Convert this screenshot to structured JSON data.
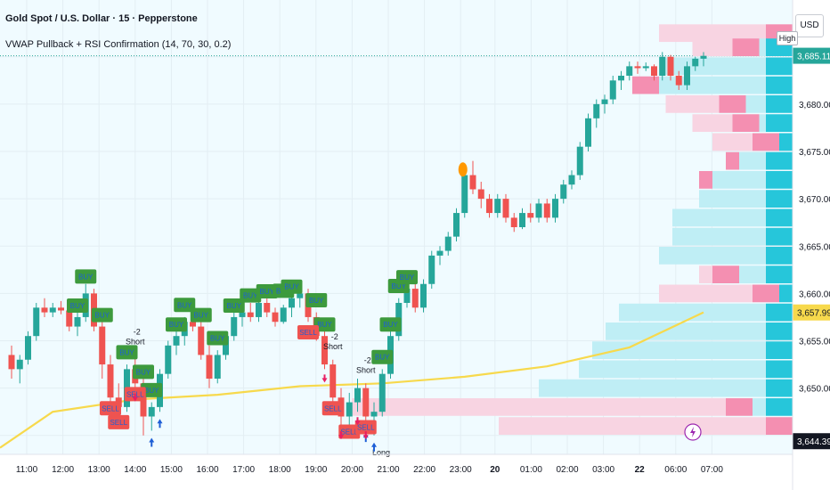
{
  "header": {
    "title": "Gold Spot / U.S. Dollar · 15 · Pepperstone",
    "indicator": "VWAP Pullback + RSI Confirmation (14, 70, 30, 0.2)"
  },
  "currency_button": "USD",
  "high_tag": "High",
  "price_axis": {
    "ticks": [
      "3,680.00",
      "3,675.00",
      "3,670.00",
      "3,665.00",
      "3,660.00",
      "3,655.00",
      "3,650.00"
    ],
    "tick_values": [
      3680,
      3675,
      3670,
      3665,
      3660,
      3655,
      3650
    ]
  },
  "price_labels": {
    "last": {
      "text": "3,685.11",
      "value": 3685.11,
      "color": "#26a69a"
    },
    "vwap": {
      "text": "3,657.99",
      "value": 3657.99,
      "color": "#f7d94c"
    },
    "low": {
      "text": "3,644.39",
      "value": 3644.39,
      "color": "#131722"
    }
  },
  "time_axis": {
    "labels": [
      "11:00",
      "12:00",
      "13:00",
      "14:00",
      "15:00",
      "16:00",
      "17:00",
      "18:00",
      "19:00",
      "20:00",
      "21:00",
      "22:00",
      "23:00",
      "20",
      "01:00",
      "02:00",
      "03:00",
      "22",
      "06:00",
      "07:00"
    ],
    "bold": [
      "20",
      "22"
    ]
  },
  "signal_texts": {
    "buy": "BUY",
    "sell": "SELL",
    "short": "Short",
    "long": "Long",
    "minus2": "-2"
  },
  "colors": {
    "up": "#26a69a",
    "down": "#ef5350",
    "vwap": "#f7d94c",
    "buy_label": "#3d9a3d",
    "sell_label": "#ef5350",
    "vp_blue": "#26c6da",
    "vp_pink": "#f48fb1",
    "dot": "#ff9800",
    "background": "#f0fbff"
  },
  "chart_data": {
    "type": "candlestick",
    "symbol": "XAUUSD",
    "interval": "15",
    "ylim": [
      3643,
      3691
    ],
    "candles": [
      [
        3653.5,
        3654.5,
        3651.0,
        3652.0
      ],
      [
        3652.0,
        3653.5,
        3650.5,
        3653.0
      ],
      [
        3653.0,
        3656.0,
        3652.5,
        3655.5
      ],
      [
        3655.5,
        3659.0,
        3655.0,
        3658.5
      ],
      [
        3658.5,
        3659.5,
        3657.5,
        3658.0
      ],
      [
        3658.0,
        3659.0,
        3657.5,
        3658.5
      ],
      [
        3658.5,
        3659.2,
        3657.8,
        3658.2
      ],
      [
        3658.2,
        3658.8,
        3656.0,
        3656.5
      ],
      [
        3656.5,
        3658.0,
        3655.5,
        3657.5
      ],
      [
        3657.5,
        3661.0,
        3657.0,
        3660.0
      ],
      [
        3660.0,
        3660.5,
        3656.0,
        3656.5
      ],
      [
        3656.5,
        3657.0,
        3651.0,
        3652.5
      ],
      [
        3652.5,
        3653.5,
        3648.0,
        3649.0
      ],
      [
        3649.0,
        3650.5,
        3646.5,
        3648.0
      ],
      [
        3648.0,
        3652.5,
        3647.5,
        3652.0
      ],
      [
        3652.0,
        3653.5,
        3650.0,
        3650.5
      ],
      [
        3650.5,
        3651.0,
        3645.0,
        3647.0
      ],
      [
        3647.0,
        3648.5,
        3645.5,
        3648.0
      ],
      [
        3648.0,
        3652.0,
        3647.5,
        3651.5
      ],
      [
        3651.5,
        3655.0,
        3651.0,
        3654.5
      ],
      [
        3654.5,
        3656.0,
        3653.5,
        3655.5
      ],
      [
        3655.5,
        3657.5,
        3654.5,
        3657.0
      ],
      [
        3657.0,
        3658.5,
        3656.0,
        3656.5
      ],
      [
        3656.5,
        3657.0,
        3653.0,
        3653.5
      ],
      [
        3653.5,
        3654.5,
        3650.0,
        3651.0
      ],
      [
        3651.0,
        3654.0,
        3650.5,
        3653.5
      ],
      [
        3653.5,
        3656.0,
        3653.0,
        3655.5
      ],
      [
        3655.5,
        3658.0,
        3655.0,
        3657.5
      ],
      [
        3657.5,
        3658.5,
        3656.5,
        3658.0
      ],
      [
        3658.0,
        3659.0,
        3657.0,
        3657.5
      ],
      [
        3657.5,
        3659.5,
        3657.0,
        3659.0
      ],
      [
        3659.0,
        3659.5,
        3657.5,
        3658.0
      ],
      [
        3658.0,
        3658.5,
        3656.5,
        3657.0
      ],
      [
        3657.0,
        3658.8,
        3656.8,
        3658.5
      ],
      [
        3658.5,
        3660.0,
        3657.5,
        3659.5
      ],
      [
        3659.5,
        3660.5,
        3658.5,
        3660.0
      ],
      [
        3660.0,
        3660.5,
        3657.0,
        3657.5
      ],
      [
        3657.5,
        3658.0,
        3655.0,
        3655.5
      ],
      [
        3655.5,
        3656.0,
        3652.0,
        3652.5
      ],
      [
        3652.5,
        3653.0,
        3648.5,
        3649.0
      ],
      [
        3649.0,
        3650.0,
        3646.0,
        3647.0
      ],
      [
        3647.0,
        3649.5,
        3646.0,
        3648.5
      ],
      [
        3648.5,
        3651.0,
        3647.5,
        3650.0
      ],
      [
        3650.0,
        3650.5,
        3646.0,
        3647.0
      ],
      [
        3647.0,
        3648.5,
        3645.0,
        3647.5
      ],
      [
        3647.5,
        3652.0,
        3647.0,
        3651.5
      ],
      [
        3651.5,
        3656.0,
        3651.0,
        3655.5
      ],
      [
        3655.5,
        3659.5,
        3655.0,
        3659.0
      ],
      [
        3659.0,
        3661.0,
        3658.5,
        3660.5
      ],
      [
        3660.5,
        3662.0,
        3658.0,
        3658.5
      ],
      [
        3658.5,
        3661.5,
        3658.0,
        3661.0
      ],
      [
        3661.0,
        3664.5,
        3660.5,
        3664.0
      ],
      [
        3664.0,
        3665.0,
        3663.0,
        3664.5
      ],
      [
        3664.5,
        3666.5,
        3664.0,
        3666.0
      ],
      [
        3666.0,
        3669.0,
        3665.5,
        3668.5
      ],
      [
        3668.5,
        3673.0,
        3668.0,
        3672.5
      ],
      [
        3672.5,
        3674.0,
        3670.5,
        3671.0
      ],
      [
        3671.0,
        3671.8,
        3669.0,
        3670.0
      ],
      [
        3670.0,
        3670.5,
        3668.0,
        3668.5
      ],
      [
        3668.5,
        3670.5,
        3668.0,
        3670.0
      ],
      [
        3670.0,
        3670.5,
        3667.5,
        3668.0
      ],
      [
        3668.0,
        3668.5,
        3666.5,
        3667.0
      ],
      [
        3667.0,
        3669.0,
        3666.8,
        3668.5
      ],
      [
        3668.5,
        3669.5,
        3667.5,
        3668.0
      ],
      [
        3668.0,
        3670.0,
        3667.5,
        3669.5
      ],
      [
        3669.5,
        3670.0,
        3667.5,
        3668.0
      ],
      [
        3668.0,
        3670.5,
        3667.5,
        3670.0
      ],
      [
        3670.0,
        3672.0,
        3669.5,
        3671.5
      ],
      [
        3671.5,
        3673.0,
        3671.0,
        3672.5
      ],
      [
        3672.5,
        3676.0,
        3672.0,
        3675.5
      ],
      [
        3675.5,
        3679.0,
        3675.0,
        3678.5
      ],
      [
        3678.5,
        3680.5,
        3677.5,
        3680.0
      ],
      [
        3680.0,
        3681.0,
        3679.0,
        3680.5
      ],
      [
        3680.5,
        3683.0,
        3680.0,
        3682.5
      ],
      [
        3682.5,
        3683.5,
        3681.5,
        3683.0
      ],
      [
        3683.0,
        3684.5,
        3682.5,
        3684.0
      ],
      [
        3684.0,
        3684.5,
        3683.2,
        3683.8
      ],
      [
        3683.8,
        3684.4,
        3683.5,
        3684.0
      ],
      [
        3684.0,
        3684.2,
        3682.5,
        3683.0
      ],
      [
        3683.0,
        3685.5,
        3682.5,
        3685.0
      ],
      [
        3685.0,
        3685.2,
        3682.5,
        3683.0
      ],
      [
        3683.0,
        3683.5,
        3681.5,
        3682.0
      ],
      [
        3682.0,
        3684.5,
        3681.5,
        3684.0
      ],
      [
        3684.0,
        3685.0,
        3683.5,
        3684.8
      ],
      [
        3684.8,
        3685.5,
        3684.0,
        3685.1
      ]
    ],
    "vwap": [
      [
        5,
        3647.5
      ],
      [
        15,
        3648.8
      ],
      [
        25,
        3649.3
      ],
      [
        35,
        3650.2
      ],
      [
        45,
        3650.5
      ],
      [
        55,
        3651.2
      ],
      [
        65,
        3652.3
      ],
      [
        75,
        3654.3
      ],
      [
        84,
        3658.0
      ]
    ],
    "markers": {
      "buy": [
        8,
        9,
        11,
        14,
        16,
        17,
        20,
        21,
        23,
        25,
        27,
        29,
        31,
        33,
        34,
        37,
        38,
        45,
        46,
        47,
        48
      ],
      "sell": [
        12,
        13,
        15,
        36,
        39,
        41,
        43
      ],
      "short": [
        15,
        39,
        43
      ],
      "long": [
        44
      ],
      "up_arrows": [
        17,
        18,
        43,
        44
      ],
      "down_arrows": [
        15,
        38,
        40,
        42,
        43
      ],
      "dot": 55
    },
    "volume_profile": [
      {
        "p": 3687.5,
        "blue": 0,
        "pink": 1.0
      },
      {
        "p": 3686.0,
        "blue": 0.25,
        "pink": 0.5
      },
      {
        "p": 3684.0,
        "blue": 1.0,
        "pink": 0
      },
      {
        "p": 3682.0,
        "blue": 1.0,
        "pink": 0.2
      },
      {
        "p": 3680.0,
        "blue": 0.35,
        "pink": 0.6
      },
      {
        "p": 3678.0,
        "blue": 0.25,
        "pink": 0.5
      },
      {
        "p": 3676.0,
        "blue": 0.1,
        "pink": 0.5
      },
      {
        "p": 3674.0,
        "blue": 0.4,
        "pink": 0.1
      },
      {
        "p": 3672.0,
        "blue": 0.6,
        "pink": 0.1
      },
      {
        "p": 3670.0,
        "blue": 0.7,
        "pink": 0
      },
      {
        "p": 3668.0,
        "blue": 0.9,
        "pink": 0
      },
      {
        "p": 3666.0,
        "blue": 0.9,
        "pink": 0
      },
      {
        "p": 3664.0,
        "blue": 1.0,
        "pink": 0
      },
      {
        "p": 3662.0,
        "blue": 0.4,
        "pink": 0.3
      },
      {
        "p": 3660.0,
        "blue": 0.1,
        "pink": 0.9
      },
      {
        "p": 3658.0,
        "blue": 1.3,
        "pink": 0
      },
      {
        "p": 3656.0,
        "blue": 1.4,
        "pink": 0
      },
      {
        "p": 3654.0,
        "blue": 1.5,
        "pink": 0
      },
      {
        "p": 3652.0,
        "blue": 1.6,
        "pink": 0
      },
      {
        "p": 3650.0,
        "blue": 1.9,
        "pink": 0
      },
      {
        "p": 3648.0,
        "blue": 0.3,
        "pink": 3.0
      },
      {
        "p": 3646.0,
        "blue": 0,
        "pink": 2.2
      }
    ]
  }
}
